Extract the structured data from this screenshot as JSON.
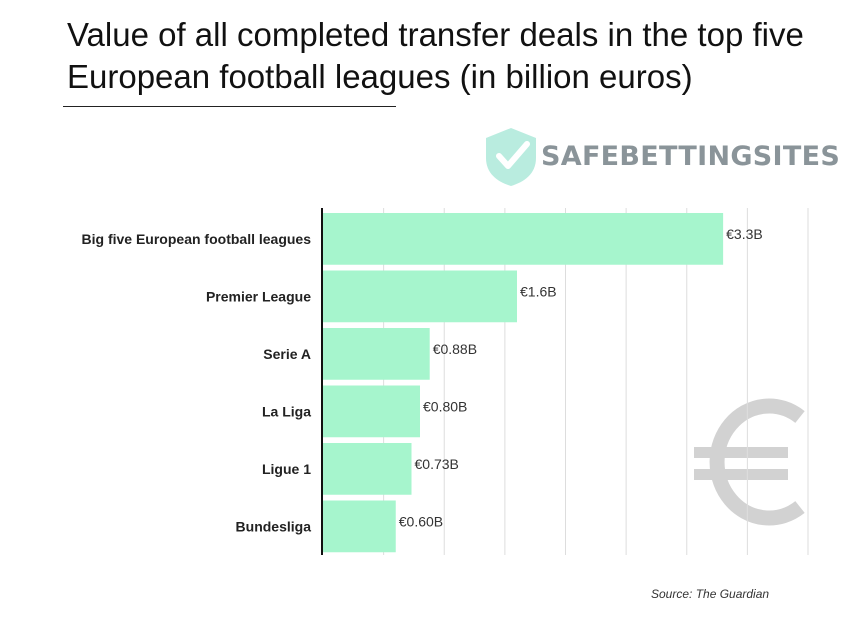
{
  "title": "Value of all completed transfer deals in the top five European football leagues (in billion euros)",
  "logo": {
    "text": "SAFEBETTINGSITES",
    "icon": "shield-check-icon"
  },
  "source": "Source: The Guardian",
  "colors": {
    "bar": "#a6f5cd",
    "grid": "#dddddd",
    "axis": "#111111",
    "logo": "#b9ecdf",
    "euro": "#d2d2d2"
  },
  "chart_data": {
    "type": "bar",
    "orientation": "horizontal",
    "title": "Value of all completed transfer deals in the top five European football leagues (in billion euros)",
    "xlabel": "",
    "ylabel": "",
    "xlim": [
      0,
      4.0
    ],
    "grid": true,
    "categories": [
      "Big five European football leagues",
      "Premier League",
      "Serie A",
      "La Liga",
      "Ligue 1",
      "Bundesliga"
    ],
    "values": [
      3.3,
      1.6,
      0.88,
      0.8,
      0.73,
      0.6
    ],
    "labels": [
      "€3.3B",
      "€1.6B",
      "€0.88B",
      "€0.80B",
      "€0.73B",
      "€0.60B"
    ]
  }
}
